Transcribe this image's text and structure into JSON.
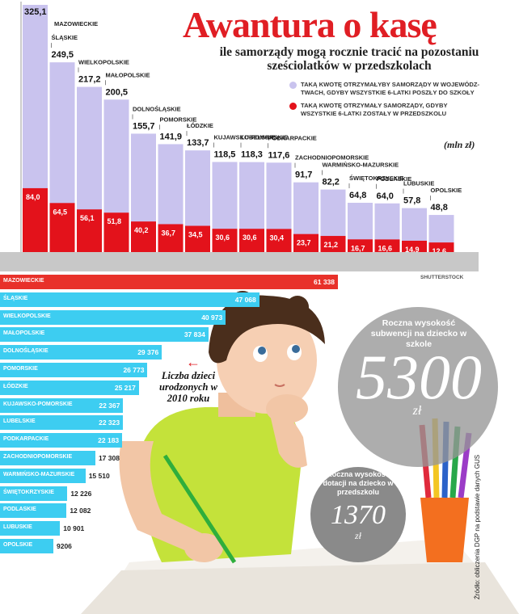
{
  "header": {
    "title": "Awantura o kasę",
    "subtitle": "ile samorządy mogą rocznie tracić na pozostaniu sześciolatków w przedszkolach"
  },
  "legend": {
    "item1": "TAKĄ KWOTĘ OTRZYMAŁYBY SAMORZĄDY W WOJEWÓDZ-TWACH, GDYBY WSZYSTKIE 6-LATKI POSZŁY DO SZKOŁY",
    "item2": "TAKĄ KWOTĘ OTRZYMAŁY SAMORZĄDY, GDYBY WSZYSTKIE 6-LATKI ZOSTAŁY W PRZEDSZKOLU",
    "color1": "#c9c3ee",
    "color2": "#e3121b"
  },
  "unit": "(mln zł)",
  "credit": "SHUTTERSTOCK",
  "births_note": "Liczba dzieci urodzonych w 2010 roku",
  "circle_big": {
    "label": "Roczna wysokość subwencji na dziecko w szkole",
    "value": "5300",
    "unit": "zł"
  },
  "circle_small": {
    "label": "Roczna wysokość dotacji na dziecko w przedszkolu",
    "value": "1370",
    "unit": "zł"
  },
  "source": "Źródło: obliczenia DGP na podstawie danych GUS",
  "colors": {
    "accent": "#e01e24",
    "lavender": "#c9c3ee",
    "red": "#e3121b",
    "cyan": "#3dcdf1",
    "hred": "#e8312a"
  },
  "chart_data": [
    {
      "type": "bar",
      "title": "Awantura o kasę",
      "subtitle": "ile samorządy mogą rocznie tracić na pozostaniu sześciolatków w przedszkolach",
      "ylabel": "(mln zł)",
      "categories": [
        "MAZOWIECKIE",
        "ŚLĄSKIE",
        "WIELKOPOLSKIE",
        "MAŁOPOLSKIE",
        "DOLNOŚLĄSKIE",
        "POMORSKIE",
        "ŁÓDZKIE",
        "KUJAWSKO-POMORSKIE",
        "LUBELSKIE",
        "PODKARPACKIE",
        "ZACHODNIOPOMORSKIE",
        "WARMIŃSKO-MAZURSKIE",
        "ŚWIĘTOKRZYSKIE",
        "PODLASKIE",
        "LUBUSKIE",
        "OPOLSKIE"
      ],
      "series": [
        {
          "name": "TAKĄ KWOTĘ OTRZYMAŁYBY SAMORZĄDY W WOJEWÓDZTWACH, GDYBY WSZYSTKIE 6-LATKI POSZŁY DO SZKOŁY",
          "values": [
            325.1,
            249.5,
            217.2,
            200.5,
            155.7,
            141.9,
            133.7,
            118.5,
            118.3,
            117.6,
            91.7,
            82.2,
            64.8,
            64.0,
            57.8,
            48.8
          ]
        },
        {
          "name": "TAKĄ KWOTĘ OTRZYMAŁY SAMORZĄDY, GDYBY WSZYSTKIE 6-LATKI ZOSTAŁY W PRZEDSZKOLU",
          "values": [
            84.0,
            64.5,
            56.1,
            51.8,
            40.2,
            36.7,
            34.5,
            30.6,
            30.6,
            30.4,
            23.7,
            21.2,
            16.7,
            16.6,
            14.9,
            12.6
          ]
        }
      ],
      "value_labels": {
        "total": [
          "325,1",
          "249,5",
          "217,2",
          "200,5",
          "155,7",
          "141,9",
          "133,7",
          "118,5",
          "118,3",
          "117,6",
          "91,7",
          "82,2",
          "64,8",
          "64,0",
          "57,8",
          "48,8"
        ],
        "red": [
          "84,0",
          "64,5",
          "56,1",
          "51,8",
          "40,2",
          "36,7",
          "34,5",
          "30,6",
          "30,6",
          "30,4",
          "23,7",
          "21,2",
          "16,7",
          "16,6",
          "14,9",
          "12,6"
        ]
      },
      "ylim": [
        0,
        325.1
      ]
    },
    {
      "type": "bar",
      "orientation": "horizontal",
      "title": "Liczba dzieci urodzonych w 2010 roku",
      "categories": [
        "MAZOWIECKIE",
        "ŚLĄSKIE",
        "WIELKOPOLSKIE",
        "MAŁOPOLSKIE",
        "DOLNOŚLĄSKIE",
        "POMORSKIE",
        "ŁÓDZKIE",
        "KUJAWSKO-POMORSKIE",
        "LUBELSKIE",
        "PODKARPACKIE",
        "ZACHODNIOPOMORSKIE",
        "WARMIŃSKO-MAZURSKIE",
        "ŚWIĘTOKRZYSKIE",
        "PODLASKIE",
        "LUBUSKIE",
        "OPOLSKIE"
      ],
      "values": [
        61338,
        47068,
        40973,
        37834,
        29376,
        26773,
        25217,
        22367,
        22323,
        22183,
        17308,
        15510,
        12226,
        12082,
        10901,
        9206
      ],
      "value_labels": [
        "61 338",
        "47 068",
        "40 973",
        "37 834",
        "29 376",
        "26 773",
        "25 217",
        "22 367",
        "22 323",
        "22 183",
        "17 308",
        "15 510",
        "12 226",
        "12 082",
        "10 901",
        "9206"
      ],
      "xlim": [
        0,
        61338
      ]
    }
  ]
}
